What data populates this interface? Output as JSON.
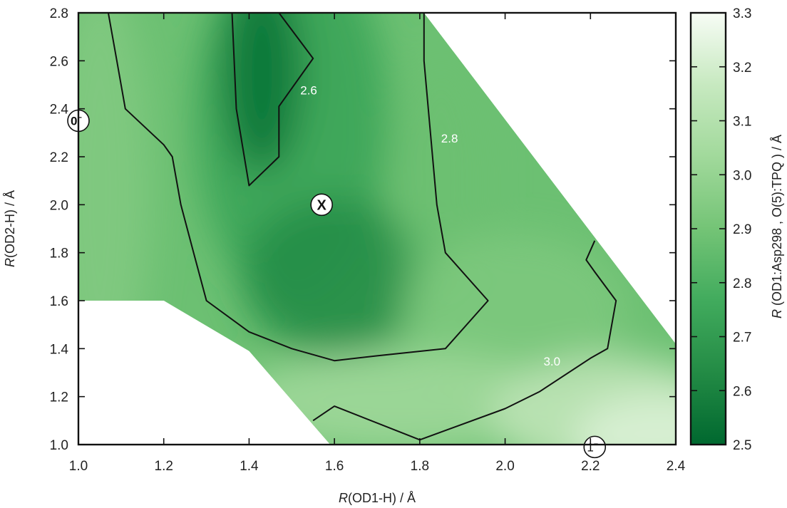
{
  "chart_data": {
    "type": "heatmap",
    "title": "",
    "xlabel_italic": "R",
    "xlabel_rest": "(OD1-H) / Å",
    "ylabel_italic": "R",
    "ylabel_rest": "(OD2-H) / Å",
    "colorbar_label_italic": "R",
    "colorbar_label_rest": " (OD1:Asp298 , O(5):TPQ ) / Å",
    "xlim": [
      1.0,
      2.4
    ],
    "ylim": [
      1.0,
      2.8
    ],
    "clim": [
      2.5,
      3.3
    ],
    "x_ticks": [
      "1.0",
      "1.2",
      "1.4",
      "1.6",
      "1.8",
      "2.0",
      "2.2",
      "2.4"
    ],
    "y_ticks": [
      "1.0",
      "1.2",
      "1.4",
      "1.6",
      "1.8",
      "2.0",
      "2.2",
      "2.4",
      "2.6",
      "2.8"
    ],
    "colorbar_ticks": [
      "2.5",
      "2.6",
      "2.7",
      "2.8",
      "2.9",
      "3.0",
      "3.1",
      "3.2",
      "3.3"
    ],
    "colormap": [
      "#00682f",
      "#238b45",
      "#41ab5d",
      "#74c476",
      "#a1d99b",
      "#c7e9c0",
      "#f7fcf5"
    ],
    "minimum": {
      "x": 1.43,
      "y": 2.55,
      "value": 2.55
    },
    "valley": {
      "x": 1.6,
      "y": 1.7,
      "value": 2.65
    },
    "valid_region": [
      [
        1.0,
        2.8
      ],
      [
        1.81,
        2.8
      ],
      [
        2.4,
        1.42
      ],
      [
        2.4,
        1.0
      ],
      [
        1.59,
        1.0
      ],
      [
        1.4,
        1.39
      ],
      [
        1.2,
        1.6
      ],
      [
        1.0,
        1.6
      ]
    ],
    "contours": [
      {
        "level": "2.6",
        "label_at": [
          1.52,
          2.46
        ],
        "points": [
          [
            1.36,
            2.8
          ],
          [
            1.47,
            2.8
          ],
          [
            1.55,
            2.61
          ],
          [
            1.47,
            2.41
          ],
          [
            1.47,
            2.2
          ],
          [
            1.4,
            2.08
          ],
          [
            1.37,
            2.4
          ],
          [
            1.36,
            2.8
          ]
        ]
      },
      {
        "level": "2.8",
        "label_at": [
          1.85,
          2.26
        ],
        "points": [
          [
            1.07,
            2.8
          ],
          [
            1.09,
            2.6
          ],
          [
            1.11,
            2.4
          ],
          [
            1.2,
            2.25
          ],
          [
            1.22,
            2.2
          ],
          [
            1.24,
            2.0
          ],
          [
            1.27,
            1.8
          ],
          [
            1.3,
            1.6
          ],
          [
            1.4,
            1.47
          ],
          [
            1.5,
            1.4
          ],
          [
            1.6,
            1.35
          ],
          [
            1.7,
            1.37
          ],
          [
            1.86,
            1.4
          ],
          [
            1.96,
            1.6
          ],
          [
            1.86,
            1.8
          ],
          [
            1.84,
            2.0
          ],
          [
            1.82,
            2.4
          ],
          [
            1.81,
            2.6
          ],
          [
            1.81,
            2.8
          ]
        ]
      },
      {
        "level": "3.0",
        "label_at": [
          2.09,
          1.33
        ],
        "points": [
          [
            1.55,
            1.1
          ],
          [
            1.6,
            1.16
          ],
          [
            1.8,
            1.02
          ],
          [
            2.0,
            1.15
          ],
          [
            2.08,
            1.22
          ],
          [
            2.2,
            1.36
          ],
          [
            2.24,
            1.4
          ],
          [
            2.26,
            1.6
          ],
          [
            2.21,
            1.72
          ],
          [
            2.19,
            1.77
          ],
          [
            2.21,
            1.85
          ]
        ]
      }
    ],
    "markers": [
      {
        "label": "0",
        "sup": "−",
        "x": 1.0,
        "y": 2.35
      },
      {
        "label": "X",
        "sup": "",
        "x": 1.57,
        "y": 2.0
      },
      {
        "label": "1",
        "sup": "−",
        "x": 2.21,
        "y": 0.99
      }
    ]
  }
}
